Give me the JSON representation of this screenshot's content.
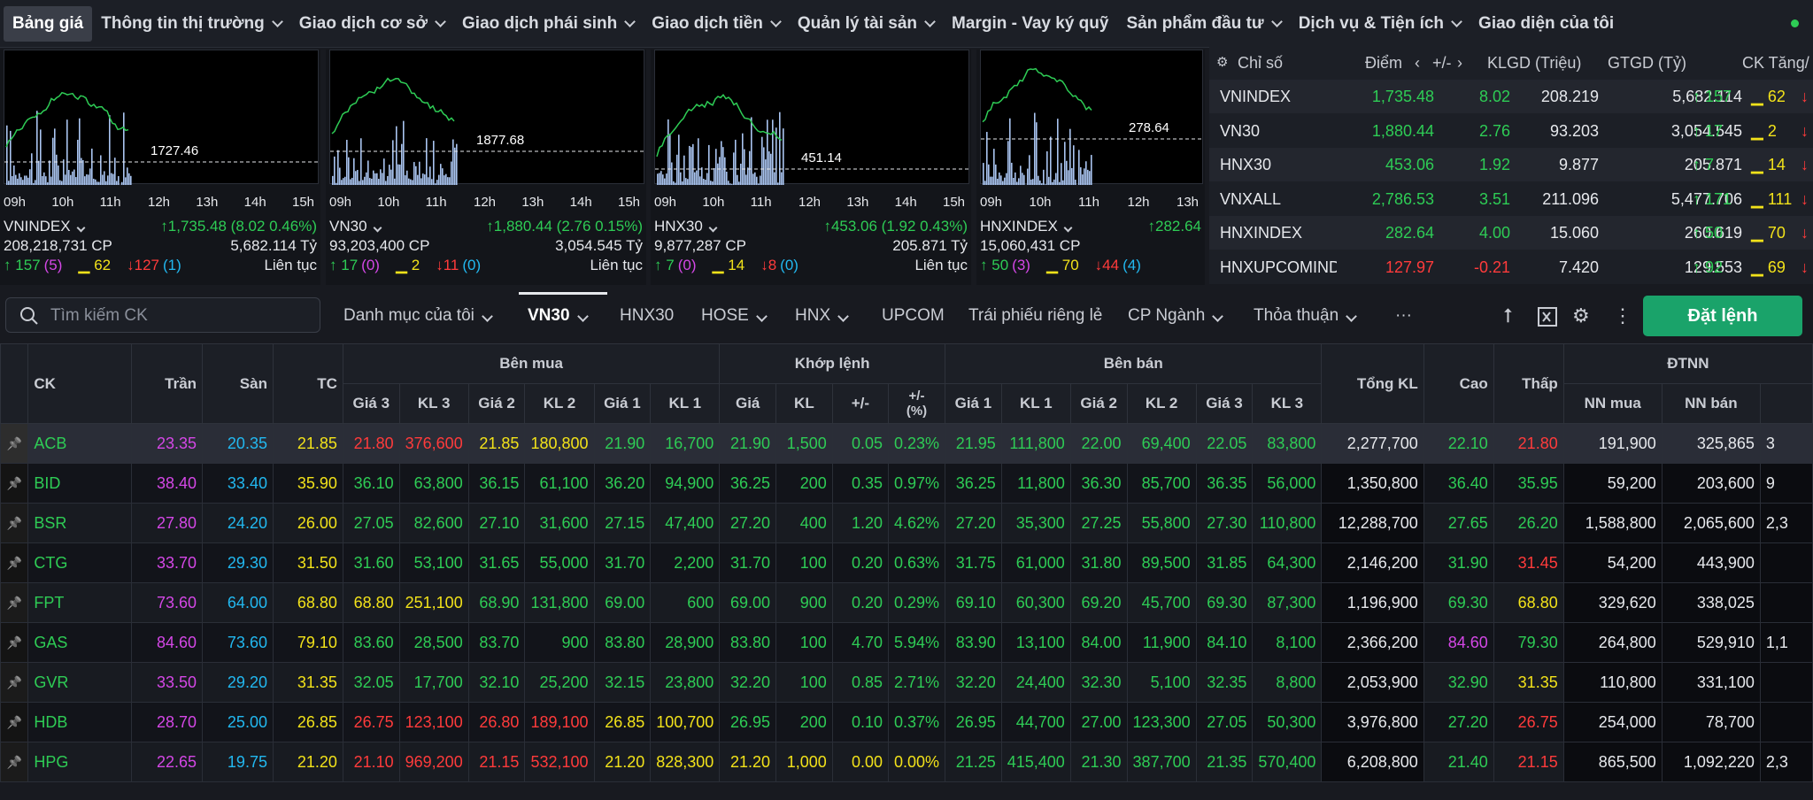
{
  "nav": {
    "items": [
      {
        "label": "Bảng giá",
        "active": true,
        "dropdown": false
      },
      {
        "label": "Thông tin thị trường",
        "dropdown": true
      },
      {
        "label": "Giao dịch cơ sở",
        "dropdown": true
      },
      {
        "label": "Giao dịch phái sinh",
        "dropdown": true
      },
      {
        "label": "Giao dịch tiền",
        "dropdown": true
      },
      {
        "label": "Quản lý tài sản",
        "dropdown": true
      },
      {
        "label": "Margin - Vay ký quỹ",
        "dropdown": false
      },
      {
        "label": "Sản phẩm đầu tư",
        "dropdown": true
      },
      {
        "label": "Dịch vụ & Tiện ích",
        "dropdown": true
      },
      {
        "label": "Giao diện của tôi",
        "dropdown": false
      }
    ]
  },
  "cards": [
    {
      "name": "VNINDEX",
      "ref": "1727.46",
      "times": [
        "09h",
        "10h",
        "11h",
        "12h",
        "13h",
        "14h",
        "15h"
      ],
      "value": "1,735.48 (8.02 0.46%)",
      "volume": "208,218,731 CP",
      "value_ty": "5,682.114 Tỷ",
      "up": "157",
      "up_ceil": "(5)",
      "ref_count": "62",
      "down": "127",
      "down_floor": "(1)",
      "status": "Liên tục"
    },
    {
      "name": "VN30",
      "ref": "1877.68",
      "times": [
        "09h",
        "10h",
        "11h",
        "12h",
        "13h",
        "14h",
        "15h"
      ],
      "value": "1,880.44 (2.76 0.15%)",
      "volume": "93,203,400 CP",
      "value_ty": "3,054.545 Tỷ",
      "up": "17",
      "up_ceil": "(0)",
      "ref_count": "2",
      "down": "11",
      "down_floor": "(0)",
      "status": "Liên tục"
    },
    {
      "name": "HNX30",
      "ref": "451.14",
      "times": [
        "09h",
        "10h",
        "11h",
        "12h",
        "13h",
        "14h",
        "15h"
      ],
      "value": "453.06 (1.92 0.43%)",
      "volume": "9,877,287 CP",
      "value_ty": "205.871 Tỷ",
      "up": "7",
      "up_ceil": "(0)",
      "ref_count": "14",
      "down": "8",
      "down_floor": "(0)",
      "status": "Liên tục"
    },
    {
      "name": "HNXINDEX",
      "ref": "278.64",
      "times": [
        "09h",
        "10h",
        "11h",
        "12h",
        "13h"
      ],
      "value": "282.64",
      "volume": "15,060,431 CP",
      "value_ty": "",
      "up": "50",
      "up_ceil": "(3)",
      "ref_count": "70",
      "down": "44",
      "down_floor": "(4)",
      "status": ""
    }
  ],
  "index_table": {
    "headers": {
      "name": "Chỉ số",
      "point": "Điểm",
      "change": "+/-",
      "vol": "KLGD (Triệu)",
      "val": "GTGD (Tỷ)",
      "ck": "CK Tăng/"
    },
    "rows": [
      {
        "name": "VNINDEX",
        "point": "1,735.48",
        "change": "8.02",
        "vol": "208.219",
        "val": "5,682.114",
        "up": "157",
        "ref": "62",
        "dir": "up"
      },
      {
        "name": "VN30",
        "point": "1,880.44",
        "change": "2.76",
        "vol": "93.203",
        "val": "3,054.545",
        "up": "17",
        "ref": "2",
        "dir": "up"
      },
      {
        "name": "HNX30",
        "point": "453.06",
        "change": "1.92",
        "vol": "9.877",
        "val": "205.871",
        "up": "7",
        "ref": "14",
        "dir": "up"
      },
      {
        "name": "VNXALL",
        "point": "2,786.53",
        "change": "3.51",
        "vol": "211.096",
        "val": "5,477.706",
        "up": "171",
        "ref": "111",
        "dir": "up"
      },
      {
        "name": "HNXINDEX",
        "point": "282.64",
        "change": "4.00",
        "vol": "15.060",
        "val": "260.619",
        "up": "50",
        "ref": "70",
        "dir": "up"
      },
      {
        "name": "HNXUPCOMINDE",
        "point": "127.97",
        "change": "-0.21",
        "vol": "7.420",
        "val": "129.553",
        "up": "92",
        "ref": "69",
        "dir": "dn"
      }
    ]
  },
  "tabs": {
    "search_placeholder": "Tìm kiếm CK",
    "items": [
      {
        "label": "Danh mục của tôi",
        "dropdown": true
      },
      {
        "label": "VN30",
        "dropdown": true,
        "active": true
      },
      {
        "label": "HNX30",
        "dropdown": false
      },
      {
        "label": "HOSE",
        "dropdown": true
      },
      {
        "label": "HNX",
        "dropdown": true
      },
      {
        "label": "UPCOM",
        "dropdown": false
      },
      {
        "label": "Trái phiếu riêng lẻ",
        "dropdown": false
      },
      {
        "label": "CP Ngành",
        "dropdown": true
      },
      {
        "label": "Thỏa thuận",
        "dropdown": true
      },
      {
        "label": "···",
        "dropdown": false
      }
    ],
    "order_button": "Đặt lệnh"
  },
  "table": {
    "group_headers": {
      "buy": "Bên mua",
      "match": "Khớp lệnh",
      "sell": "Bên bán",
      "foreign": "ĐTNN"
    },
    "headers": {
      "ck": "CK",
      "ceil": "Trần",
      "floor": "Sàn",
      "ref": "TC",
      "b3": "Giá 3",
      "bv3": "KL 3",
      "b2": "Giá 2",
      "bv2": "KL 2",
      "b1": "Giá 1",
      "bv1": "KL 1",
      "mp": "Giá",
      "mv": "KL",
      "chg": "+/-",
      "pct": "+/- (%)",
      "s1": "Giá 1",
      "sv1": "KL 1",
      "s2": "Giá 2",
      "sv2": "KL 2",
      "s3": "Giá 3",
      "sv3": "KL 3",
      "total": "Tổng KL",
      "high": "Cao",
      "low": "Thấp",
      "nnbuy": "NN mua",
      "nnsell": "NN bán"
    },
    "colors": {
      "up": "#2ecc55",
      "down": "#ff3b3b",
      "ref": "#f2e21a",
      "ceil": "#d447e6",
      "floor": "#22b8f0"
    },
    "rows": [
      {
        "sym": "ACB",
        "ceil": "23.35",
        "floor": "20.35",
        "ref": "21.85",
        "b3": [
          "21.80",
          "d"
        ],
        "bv3": [
          "376,600",
          "d"
        ],
        "b2": [
          "21.85",
          "r"
        ],
        "bv2": [
          "180,800",
          "r"
        ],
        "b1": [
          "21.90",
          "u"
        ],
        "bv1": [
          "16,700",
          "u"
        ],
        "mp": [
          "21.90",
          "u"
        ],
        "mv": [
          "1,500",
          "u"
        ],
        "chg": [
          "0.05",
          "u"
        ],
        "pct": [
          "0.23%",
          "u"
        ],
        "s1": [
          "21.95",
          "u"
        ],
        "sv1": [
          "111,800",
          "u"
        ],
        "s2": [
          "22.00",
          "u"
        ],
        "sv2": [
          "69,400",
          "u"
        ],
        "s3": [
          "22.05",
          "u"
        ],
        "sv3": [
          "83,800",
          "u"
        ],
        "total": "2,277,700",
        "high": [
          "22.10",
          "u"
        ],
        "low": [
          "21.80",
          "d"
        ],
        "nnbuy": "191,900",
        "nnsell": "325,865",
        "extra": "3"
      },
      {
        "sym": "BID",
        "ceil": "38.40",
        "floor": "33.40",
        "ref": "35.90",
        "b3": [
          "36.10",
          "u"
        ],
        "bv3": [
          "63,800",
          "u"
        ],
        "b2": [
          "36.15",
          "u"
        ],
        "bv2": [
          "61,100",
          "u"
        ],
        "b1": [
          "36.20",
          "u"
        ],
        "bv1": [
          "94,900",
          "u"
        ],
        "mp": [
          "36.25",
          "u"
        ],
        "mv": [
          "200",
          "u"
        ],
        "chg": [
          "0.35",
          "u"
        ],
        "pct": [
          "0.97%",
          "u"
        ],
        "s1": [
          "36.25",
          "u"
        ],
        "sv1": [
          "11,800",
          "u"
        ],
        "s2": [
          "36.30",
          "u"
        ],
        "sv2": [
          "85,700",
          "u"
        ],
        "s3": [
          "36.35",
          "u"
        ],
        "sv3": [
          "56,000",
          "u"
        ],
        "total": "1,350,800",
        "high": [
          "36.40",
          "u"
        ],
        "low": [
          "35.95",
          "u"
        ],
        "nnbuy": "59,200",
        "nnsell": "203,600",
        "extra": "9"
      },
      {
        "sym": "BSR",
        "ceil": "27.80",
        "floor": "24.20",
        "ref": "26.00",
        "b3": [
          "27.05",
          "u"
        ],
        "bv3": [
          "82,600",
          "u"
        ],
        "b2": [
          "27.10",
          "u"
        ],
        "bv2": [
          "31,600",
          "u"
        ],
        "b1": [
          "27.15",
          "u"
        ],
        "bv1": [
          "47,400",
          "u"
        ],
        "mp": [
          "27.20",
          "u"
        ],
        "mv": [
          "400",
          "u"
        ],
        "chg": [
          "1.20",
          "u"
        ],
        "pct": [
          "4.62%",
          "u"
        ],
        "s1": [
          "27.20",
          "u"
        ],
        "sv1": [
          "35,300",
          "u"
        ],
        "s2": [
          "27.25",
          "u"
        ],
        "sv2": [
          "55,800",
          "u"
        ],
        "s3": [
          "27.30",
          "u"
        ],
        "sv3": [
          "110,800",
          "u"
        ],
        "total": "12,288,700",
        "high": [
          "27.65",
          "u"
        ],
        "low": [
          "26.20",
          "u"
        ],
        "nnbuy": "1,588,800",
        "nnsell": "2,065,600",
        "extra": "2,3"
      },
      {
        "sym": "CTG",
        "ceil": "33.70",
        "floor": "29.30",
        "ref": "31.50",
        "b3": [
          "31.60",
          "u"
        ],
        "bv3": [
          "53,100",
          "u"
        ],
        "b2": [
          "31.65",
          "u"
        ],
        "bv2": [
          "55,000",
          "u"
        ],
        "b1": [
          "31.70",
          "u"
        ],
        "bv1": [
          "2,200",
          "u"
        ],
        "mp": [
          "31.70",
          "u"
        ],
        "mv": [
          "100",
          "u"
        ],
        "chg": [
          "0.20",
          "u"
        ],
        "pct": [
          "0.63%",
          "u"
        ],
        "s1": [
          "31.75",
          "u"
        ],
        "sv1": [
          "61,000",
          "u"
        ],
        "s2": [
          "31.80",
          "u"
        ],
        "sv2": [
          "89,500",
          "u"
        ],
        "s3": [
          "31.85",
          "u"
        ],
        "sv3": [
          "64,300",
          "u"
        ],
        "total": "2,146,200",
        "high": [
          "31.90",
          "u"
        ],
        "low": [
          "31.45",
          "d"
        ],
        "nnbuy": "54,200",
        "nnsell": "443,900",
        "extra": ""
      },
      {
        "sym": "FPT",
        "ceil": "73.60",
        "floor": "64.00",
        "ref": "68.80",
        "b3": [
          "68.80",
          "r"
        ],
        "bv3": [
          "251,100",
          "r"
        ],
        "b2": [
          "68.90",
          "u"
        ],
        "bv2": [
          "131,800",
          "u"
        ],
        "b1": [
          "69.00",
          "u"
        ],
        "bv1": [
          "600",
          "u"
        ],
        "mp": [
          "69.00",
          "u"
        ],
        "mv": [
          "900",
          "u"
        ],
        "chg": [
          "0.20",
          "u"
        ],
        "pct": [
          "0.29%",
          "u"
        ],
        "s1": [
          "69.10",
          "u"
        ],
        "sv1": [
          "60,300",
          "u"
        ],
        "s2": [
          "69.20",
          "u"
        ],
        "sv2": [
          "45,700",
          "u"
        ],
        "s3": [
          "69.30",
          "u"
        ],
        "sv3": [
          "87,300",
          "u"
        ],
        "total": "1,196,900",
        "high": [
          "69.30",
          "u"
        ],
        "low": [
          "68.80",
          "r"
        ],
        "nnbuy": "329,620",
        "nnsell": "338,025",
        "extra": ""
      },
      {
        "sym": "GAS",
        "ceil": "84.60",
        "floor": "73.60",
        "ref": "79.10",
        "b3": [
          "83.60",
          "u"
        ],
        "bv3": [
          "28,500",
          "u"
        ],
        "b2": [
          "83.70",
          "u"
        ],
        "bv2": [
          "900",
          "u"
        ],
        "b1": [
          "83.80",
          "u"
        ],
        "bv1": [
          "28,900",
          "u"
        ],
        "mp": [
          "83.80",
          "u"
        ],
        "mv": [
          "100",
          "u"
        ],
        "chg": [
          "4.70",
          "u"
        ],
        "pct": [
          "5.94%",
          "u"
        ],
        "s1": [
          "83.90",
          "u"
        ],
        "sv1": [
          "13,100",
          "u"
        ],
        "s2": [
          "84.00",
          "u"
        ],
        "sv2": [
          "11,900",
          "u"
        ],
        "s3": [
          "84.10",
          "u"
        ],
        "sv3": [
          "8,100",
          "u"
        ],
        "total": "2,366,200",
        "high": [
          "84.60",
          "c"
        ],
        "low": [
          "79.30",
          "u"
        ],
        "nnbuy": "264,800",
        "nnsell": "529,910",
        "extra": "1,1"
      },
      {
        "sym": "GVR",
        "ceil": "33.50",
        "floor": "29.20",
        "ref": "31.35",
        "b3": [
          "32.05",
          "u"
        ],
        "bv3": [
          "17,700",
          "u"
        ],
        "b2": [
          "32.10",
          "u"
        ],
        "bv2": [
          "25,200",
          "u"
        ],
        "b1": [
          "32.15",
          "u"
        ],
        "bv1": [
          "23,800",
          "u"
        ],
        "mp": [
          "32.20",
          "u"
        ],
        "mv": [
          "100",
          "u"
        ],
        "chg": [
          "0.85",
          "u"
        ],
        "pct": [
          "2.71%",
          "u"
        ],
        "s1": [
          "32.20",
          "u"
        ],
        "sv1": [
          "24,400",
          "u"
        ],
        "s2": [
          "32.30",
          "u"
        ],
        "sv2": [
          "5,100",
          "u"
        ],
        "s3": [
          "32.35",
          "u"
        ],
        "sv3": [
          "8,800",
          "u"
        ],
        "total": "2,053,900",
        "high": [
          "32.90",
          "u"
        ],
        "low": [
          "31.35",
          "r"
        ],
        "nnbuy": "110,800",
        "nnsell": "331,100",
        "extra": ""
      },
      {
        "sym": "HDB",
        "ceil": "28.70",
        "floor": "25.00",
        "ref": "26.85",
        "b3": [
          "26.75",
          "d"
        ],
        "bv3": [
          "123,100",
          "d"
        ],
        "b2": [
          "26.80",
          "d"
        ],
        "bv2": [
          "189,100",
          "d"
        ],
        "b1": [
          "26.85",
          "r"
        ],
        "bv1": [
          "100,700",
          "r"
        ],
        "mp": [
          "26.95",
          "u"
        ],
        "mv": [
          "200",
          "u"
        ],
        "chg": [
          "0.10",
          "u"
        ],
        "pct": [
          "0.37%",
          "u"
        ],
        "s1": [
          "26.95",
          "u"
        ],
        "sv1": [
          "44,700",
          "u"
        ],
        "s2": [
          "27.00",
          "u"
        ],
        "sv2": [
          "123,300",
          "u"
        ],
        "s3": [
          "27.05",
          "u"
        ],
        "sv3": [
          "50,300",
          "u"
        ],
        "total": "3,976,800",
        "high": [
          "27.20",
          "u"
        ],
        "low": [
          "26.75",
          "d"
        ],
        "nnbuy": "254,000",
        "nnsell": "78,700",
        "extra": ""
      },
      {
        "sym": "HPG",
        "ceil": "22.65",
        "floor": "19.75",
        "ref": "21.20",
        "b3": [
          "21.10",
          "d"
        ],
        "bv3": [
          "969,200",
          "d"
        ],
        "b2": [
          "21.15",
          "d"
        ],
        "bv2": [
          "532,100",
          "d"
        ],
        "b1": [
          "21.20",
          "r"
        ],
        "bv1": [
          "828,300",
          "r"
        ],
        "mp": [
          "21.20",
          "r"
        ],
        "mv": [
          "1,000",
          "r"
        ],
        "chg": [
          "0.00",
          "r"
        ],
        "pct": [
          "0.00%",
          "r"
        ],
        "s1": [
          "21.25",
          "u"
        ],
        "sv1": [
          "415,400",
          "u"
        ],
        "s2": [
          "21.30",
          "u"
        ],
        "sv2": [
          "387,700",
          "u"
        ],
        "s3": [
          "21.35",
          "u"
        ],
        "sv3": [
          "570,400",
          "u"
        ],
        "total": "6,208,800",
        "high": [
          "21.40",
          "u"
        ],
        "low": [
          "21.15",
          "d"
        ],
        "nnbuy": "865,500",
        "nnsell": "1,092,220",
        "extra": "2,3"
      }
    ]
  }
}
